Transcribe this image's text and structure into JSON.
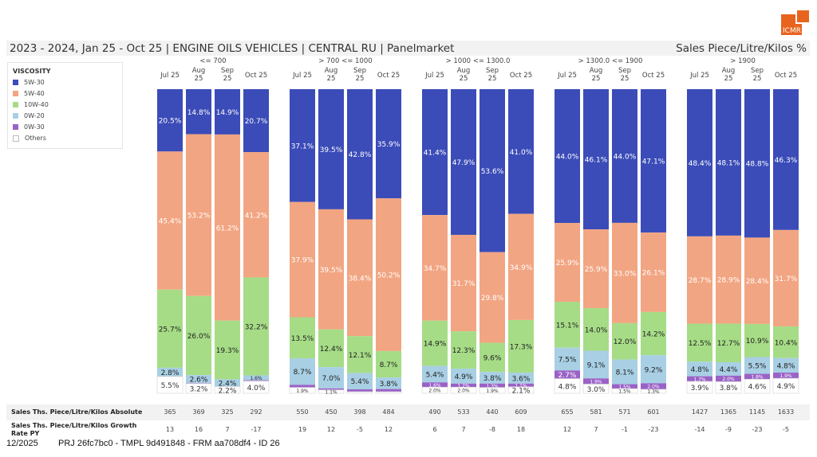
{
  "header": {
    "title": "2023 - 2024, Jan 25 - Oct 25 | ENGINE OILS VEHICLES | CENTRAL RU | Panelmarket",
    "measure": "Sales Piece/Litre/Kilos %",
    "logo_text": "ICMR"
  },
  "legend": {
    "title": "VISCOSITY",
    "items": [
      {
        "label": "5W-30",
        "color": "#3b4cb8"
      },
      {
        "label": "5W-40",
        "color": "#f2a582"
      },
      {
        "label": "10W-40",
        "color": "#a6dc86"
      },
      {
        "label": "0W-20",
        "color": "#a8cfe4"
      },
      {
        "label": "0W-30",
        "color": "#9a62c6"
      },
      {
        "label": "Others",
        "color": "#ffffff"
      }
    ]
  },
  "chart_data": {
    "type": "bar",
    "stacked": true,
    "normalized": true,
    "title": "2023 - 2024, Jan 25 - Oct 25 | ENGINE OILS VEHICLES | CENTRAL RU | Panelmarket",
    "ylabel": "Sales Piece/Litre/Kilos %",
    "ylim": [
      0,
      100
    ],
    "legend_position": "left",
    "series_names": [
      "5W-30",
      "5W-40",
      "10W-40",
      "0W-20",
      "0W-30",
      "Others"
    ],
    "groups": [
      {
        "name": "<= 700",
        "categories": [
          "Jul 25",
          "Aug 25",
          "Sep 25",
          "Oct 25"
        ],
        "values": [
          [
            20.5,
            45.4,
            25.7,
            2.8,
            0.1,
            5.5
          ],
          [
            14.8,
            53.2,
            26.0,
            2.6,
            0.2,
            3.2
          ],
          [
            14.9,
            61.2,
            19.3,
            2.4,
            0.0,
            2.2
          ],
          [
            20.7,
            41.2,
            32.2,
            1.6,
            0.3,
            4.0
          ]
        ],
        "labels": [
          [
            "20.5%",
            "45.4%",
            "25.7%",
            "2.8%",
            "",
            "5.5%"
          ],
          [
            "14.8%",
            "53.2%",
            "26.0%",
            "2.6%",
            "",
            "3.2%"
          ],
          [
            "14.9%",
            "61.2%",
            "19.3%",
            "2.4%",
            "",
            "2.2%"
          ],
          [
            "20.7%",
            "41.2%",
            "32.2%",
            "1.6%",
            "",
            "4.0%"
          ]
        ]
      },
      {
        "name": "> 700 <= 1000",
        "categories": [
          "Jul 25",
          "Aug 25",
          "Sep 25",
          "Oct 25"
        ],
        "values": [
          [
            37.1,
            37.9,
            13.5,
            8.7,
            0.9,
            1.9
          ],
          [
            39.5,
            39.5,
            12.4,
            7.0,
            0.5,
            1.1
          ],
          [
            42.8,
            38.4,
            12.1,
            5.4,
            0.8,
            0.5
          ],
          [
            35.9,
            50.2,
            8.7,
            3.8,
            0.9,
            0.5
          ]
        ],
        "labels": [
          [
            "37.1%",
            "37.9%",
            "13.5%",
            "8.7%",
            "",
            "1.9%"
          ],
          [
            "39.5%",
            "39.5%",
            "12.4%",
            "7.0%",
            "",
            "1.1%"
          ],
          [
            "42.8%",
            "38.4%",
            "12.1%",
            "5.4%",
            "",
            ""
          ],
          [
            "35.9%",
            "50.2%",
            "8.7%",
            "3.8%",
            "",
            ""
          ]
        ]
      },
      {
        "name": "> 1000 <= 1300.0",
        "categories": [
          "Jul 25",
          "Aug 25",
          "Sep 25",
          "Oct 25"
        ],
        "values": [
          [
            41.4,
            34.7,
            14.9,
            5.4,
            1.6,
            2.0
          ],
          [
            47.9,
            31.7,
            12.3,
            4.9,
            1.2,
            2.0
          ],
          [
            53.6,
            29.8,
            9.6,
            3.8,
            1.3,
            1.9
          ],
          [
            41.0,
            34.9,
            17.3,
            3.6,
            1.1,
            2.1
          ]
        ],
        "labels": [
          [
            "41.4%",
            "34.7%",
            "14.9%",
            "5.4%",
            "1.6%",
            "2.0%"
          ],
          [
            "47.9%",
            "31.7%",
            "12.3%",
            "4.9%",
            "1.2%",
            "2.0%"
          ],
          [
            "53.6%",
            "29.8%",
            "9.6%",
            "3.8%",
            "1.3%",
            "1.9%"
          ],
          [
            "41.0%",
            "34.9%",
            "17.3%",
            "3.6%",
            "1.1%",
            "2.1%"
          ]
        ]
      },
      {
        "name": "> 1300.0 <= 1900",
        "categories": [
          "Jul 25",
          "Aug 25",
          "Sep 25",
          "Oct 25"
        ],
        "values": [
          [
            44.0,
            25.9,
            15.1,
            7.5,
            2.7,
            4.8
          ],
          [
            46.1,
            25.9,
            14.0,
            9.1,
            1.9,
            3.0
          ],
          [
            44.0,
            33.0,
            12.0,
            8.1,
            1.5,
            1.5
          ],
          [
            47.1,
            26.1,
            14.2,
            9.2,
            2.0,
            1.3
          ]
        ],
        "labels": [
          [
            "44.0%",
            "25.9%",
            "15.1%",
            "7.5%",
            "2.7%",
            "4.8%"
          ],
          [
            "46.1%",
            "25.9%",
            "14.0%",
            "9.1%",
            "1.9%",
            "3.0%"
          ],
          [
            "44.0%",
            "33.0%",
            "12.0%",
            "8.1%",
            "1.5%",
            "1.5%"
          ],
          [
            "47.1%",
            "26.1%",
            "14.2%",
            "9.2%",
            "2.0%",
            "1.3%"
          ]
        ]
      },
      {
        "name": "> 1900",
        "categories": [
          "Jul 25",
          "Aug 25",
          "Sep 25",
          "Oct 25"
        ],
        "values": [
          [
            48.4,
            28.7,
            12.5,
            4.8,
            1.7,
            3.9
          ],
          [
            48.1,
            28.9,
            12.7,
            4.4,
            2.0,
            3.8
          ],
          [
            48.8,
            28.4,
            10.9,
            5.5,
            1.8,
            4.6
          ],
          [
            46.3,
            31.7,
            10.4,
            4.8,
            1.9,
            4.9
          ]
        ],
        "labels": [
          [
            "48.4%",
            "28.7%",
            "12.5%",
            "4.8%",
            "1.7%",
            "3.9%"
          ],
          [
            "48.1%",
            "28.9%",
            "12.7%",
            "4.4%",
            "2.0%",
            "3.8%"
          ],
          [
            "48.8%",
            "28.4%",
            "10.9%",
            "5.5%",
            "1.8%",
            "4.6%"
          ],
          [
            "46.3%",
            "31.7%",
            "10.4%",
            "4.8%",
            "1.9%",
            "4.9%"
          ]
        ]
      }
    ]
  },
  "table": {
    "rows": [
      {
        "label": "Sales Ths. Piece/Litre/Kilos Absolute",
        "values": [
          365,
          369,
          325,
          292,
          550,
          450,
          398,
          484,
          490,
          533,
          440,
          609,
          655,
          581,
          571,
          601,
          1427,
          1365,
          1145,
          1633
        ]
      },
      {
        "label_line1": "Sales Ths. Piece/Litre/Kilos Growth",
        "label_line2": "Rate PY",
        "values": [
          13,
          16,
          7,
          -17,
          19,
          12,
          -5,
          12,
          6,
          7,
          -8,
          18,
          12,
          7,
          -1,
          -23,
          -14,
          -9,
          -23,
          -5
        ]
      }
    ]
  },
  "footer": {
    "date": "12/2025",
    "project": "PRJ 26fc7bc0 - TMPL 9d491848 - FRM aa708df4 - ID 26"
  }
}
